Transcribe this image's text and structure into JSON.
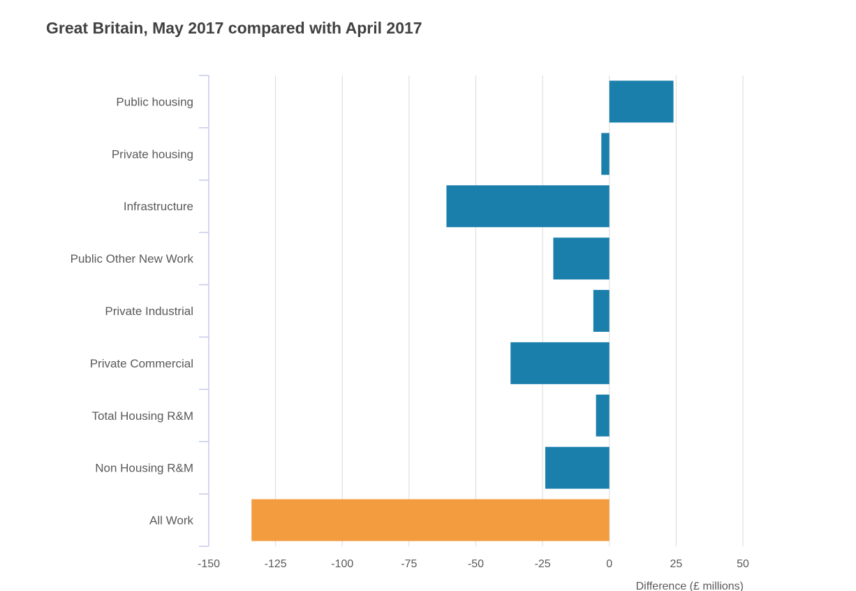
{
  "title": "Great Britain, May 2017 compared with April 2017",
  "chart_data": {
    "type": "bar",
    "orientation": "horizontal",
    "title": "Great Britain, May 2017 compared with April 2017",
    "xlabel": "Difference (£ millions)",
    "ylabel": "",
    "xlim": [
      -150,
      50
    ],
    "xticks": [
      -150,
      -125,
      -100,
      -75,
      -50,
      -25,
      0,
      25,
      50
    ],
    "grid": true,
    "categories": [
      "Public housing",
      "Private housing",
      "Infrastructure",
      "Public Other New Work",
      "Private Industrial",
      "Private Commercial",
      "Total Housing R&M",
      "Non Housing R&M",
      "All Work"
    ],
    "values": [
      24,
      -3,
      -61,
      -21,
      -6,
      -37,
      -5,
      -24,
      -134
    ],
    "colors": {
      "default": "#1b7fab",
      "highlight": "#f39c3f",
      "gridline": "#dadadd",
      "axis": "#c5cae9"
    },
    "highlight_category": "All Work"
  }
}
